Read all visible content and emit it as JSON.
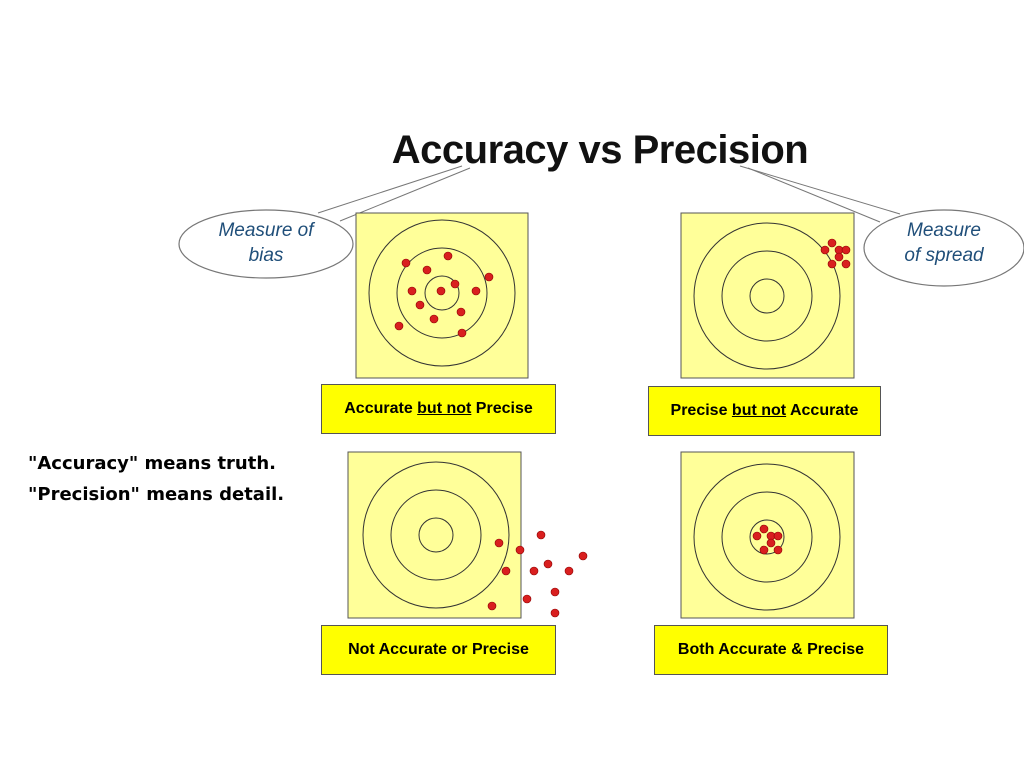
{
  "title": "Accuracy vs Precision",
  "callouts": {
    "left": {
      "line1": "Measure of",
      "line2": "bias"
    },
    "right": {
      "line1": "Measure",
      "line2": "of spread"
    }
  },
  "panels": [
    {
      "id": "accurate-not-precise",
      "caption": {
        "part1": "Accurate ",
        "underlined": "but not",
        "part2": " Precise"
      }
    },
    {
      "id": "precise-not-accurate",
      "caption": {
        "part1": "Precise ",
        "underlined": "but not",
        "part2": " Accurate"
      }
    },
    {
      "id": "not-accurate-or-precise",
      "caption": {
        "text": "Not Accurate or Precise"
      }
    },
    {
      "id": "accurate-and-precise",
      "caption": {
        "text": "Both Accurate & Precise"
      }
    }
  ],
  "side_note": {
    "line1": "\"Accuracy\" means truth.",
    "line2": "\"Precision\" means detail."
  },
  "colors": {
    "target_fill": "#ffff99",
    "caption_fill": "#ffff00",
    "dot": "#d91f1f",
    "callout_text": "#1f4e79"
  }
}
